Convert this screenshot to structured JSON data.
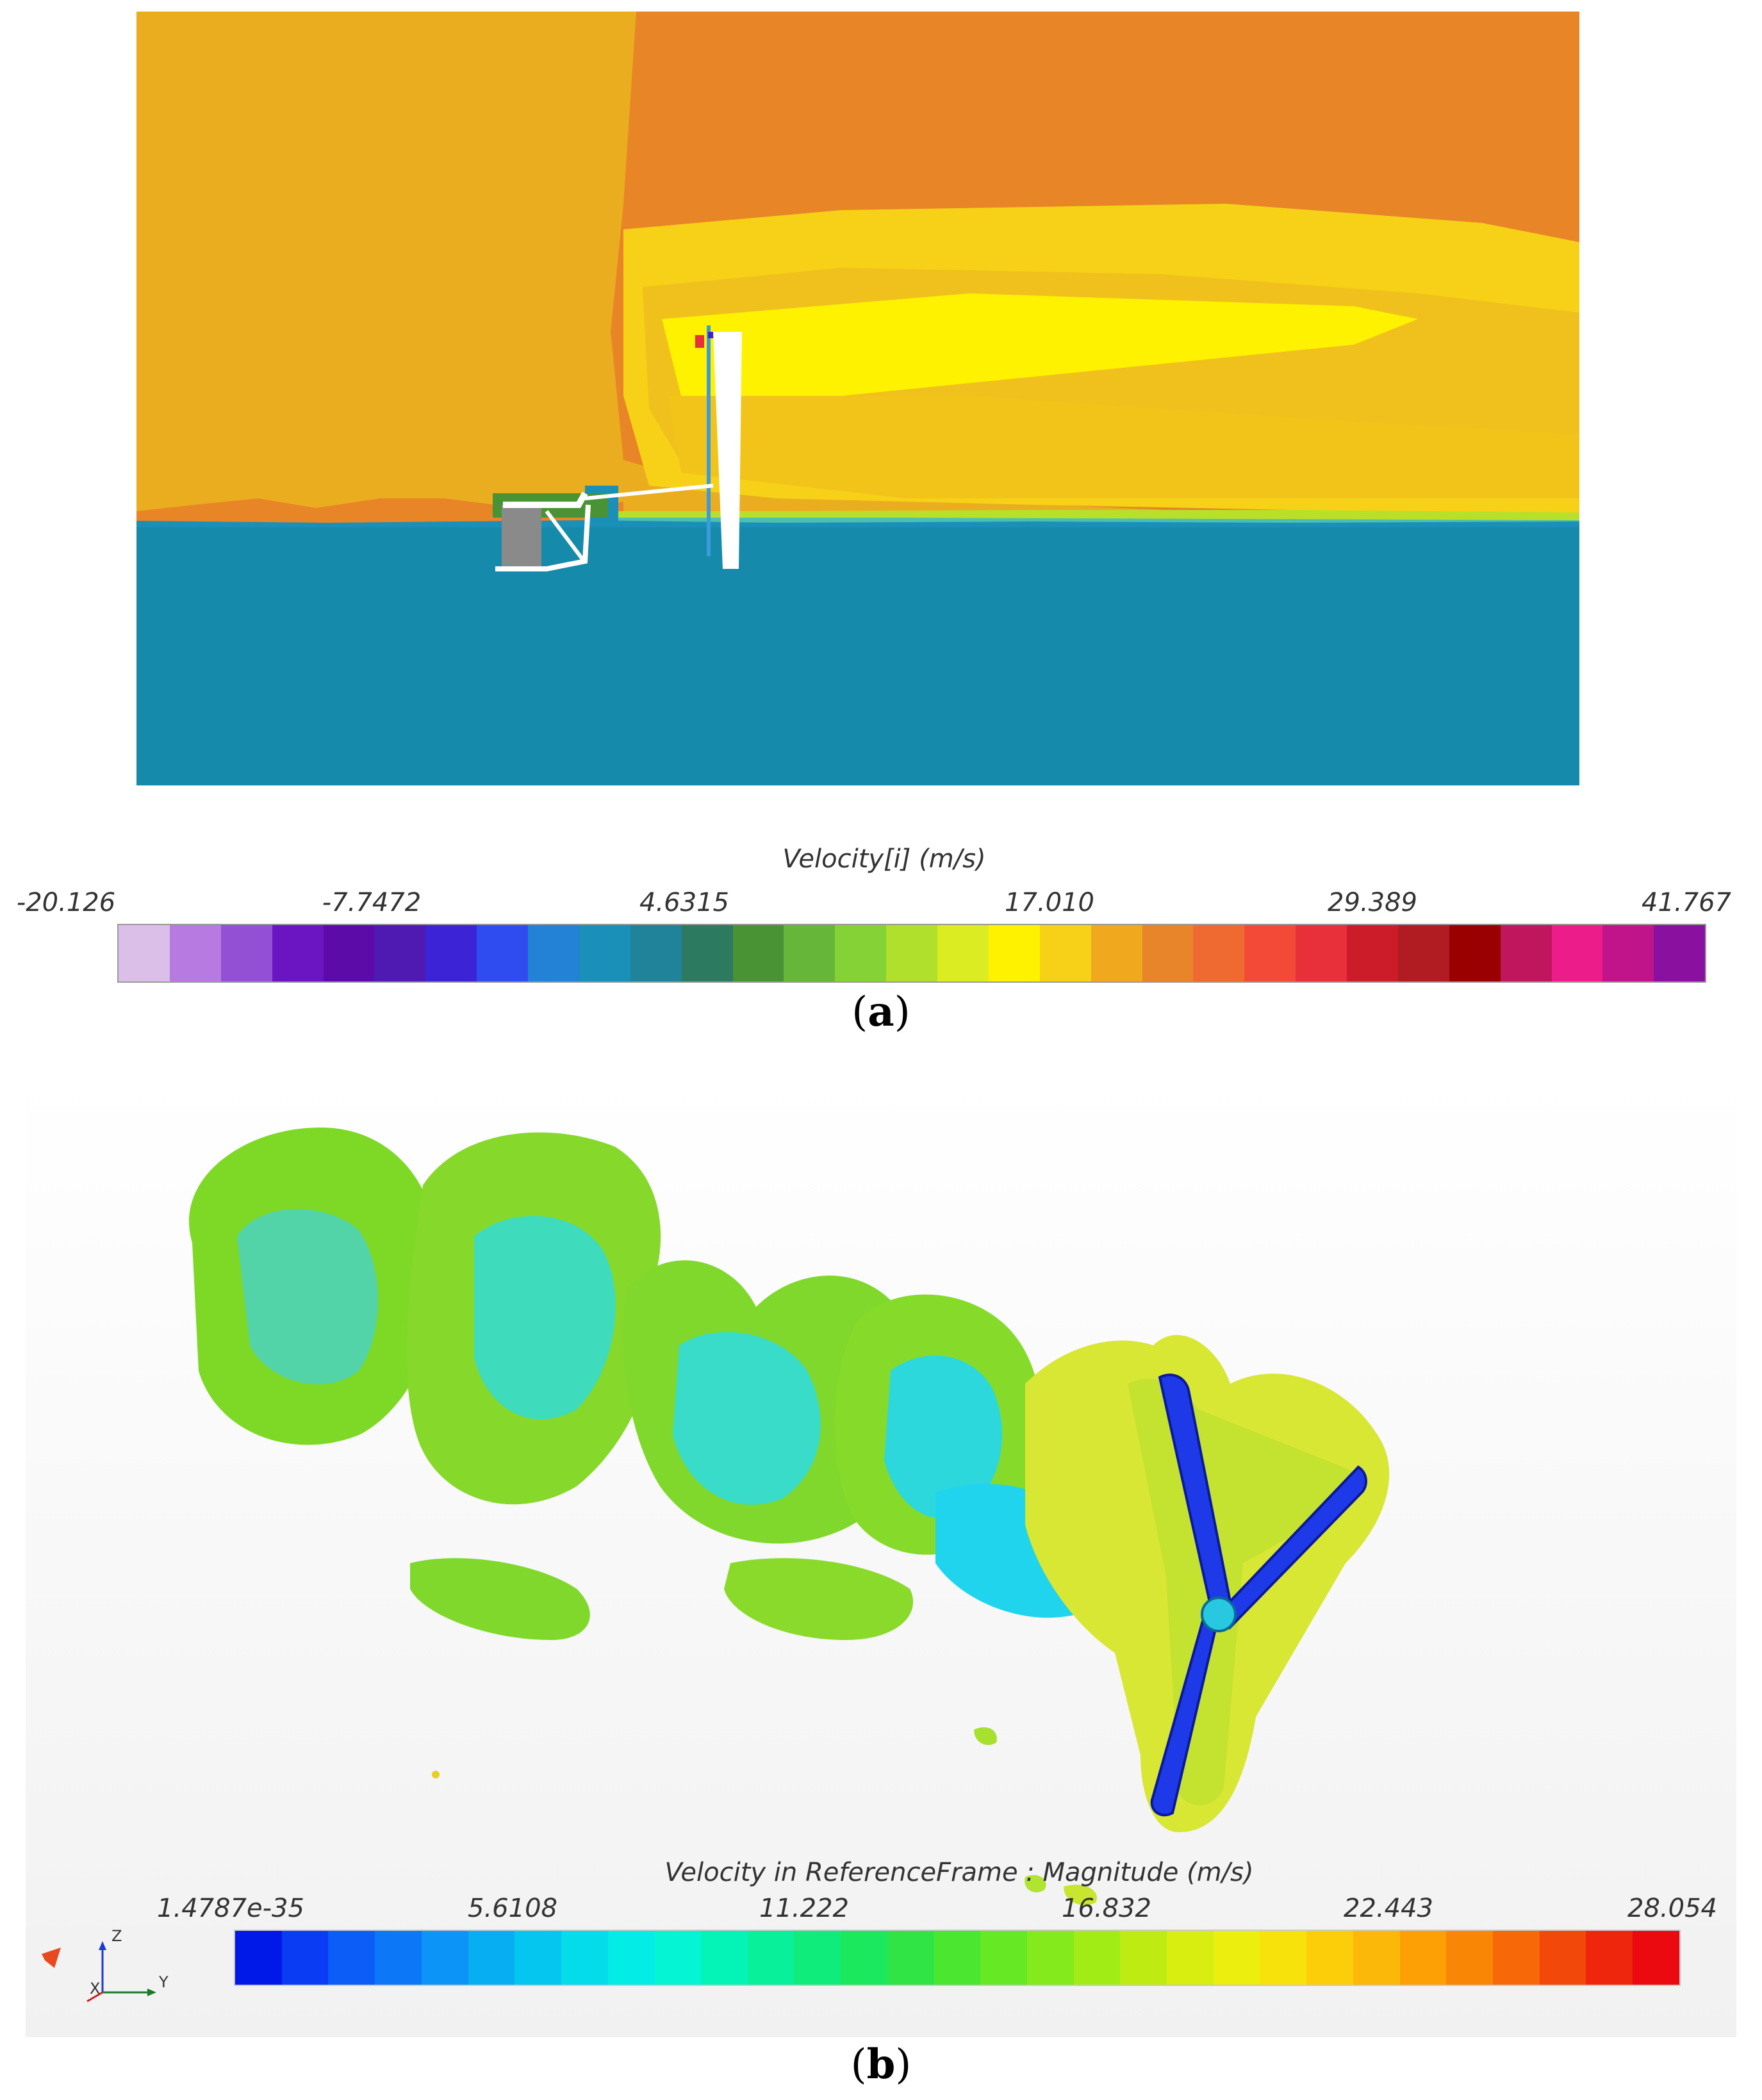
{
  "panel_a": {
    "caption_open": "(",
    "caption_letter": "a",
    "caption_close": ")",
    "legend_title": "Velocity[i] (m/s)",
    "ticks": [
      "-20.126",
      "-7.7472",
      "4.6315",
      "17.010",
      "29.389",
      "41.767"
    ],
    "colors": [
      "#dcbfe8",
      "#b77ae0",
      "#9350d4",
      "#6b14c2",
      "#5c0ba8",
      "#4e1ab2",
      "#3c24d6",
      "#2f4cf0",
      "#2381d6",
      "#1a90b8",
      "#218399",
      "#2c7a60",
      "#4a9334",
      "#66b63a",
      "#85d236",
      "#b0df2c",
      "#dbec22",
      "#fff200",
      "#f7d118",
      "#f0a81e",
      "#e8852a",
      "#ef6a30",
      "#f24a36",
      "#e8303a",
      "#cc1c2a",
      "#b01c22",
      "#9a0000",
      "#c0165e",
      "#ec1d8a",
      "#c0148a",
      "#8a10a0"
    ]
  },
  "panel_b": {
    "caption_open": "(",
    "caption_letter": "b",
    "caption_close": ")",
    "legend_title": "Velocity in ReferenceFrame            : Magnitude (m/s)",
    "ticks": [
      "1.4787e-35",
      "5.6108",
      "11.222",
      "16.832",
      "22.443",
      "28.054"
    ],
    "axis_labels": {
      "z": "Z",
      "x": "X",
      "y": "Y"
    },
    "colors": [
      "#0018e8",
      "#0a3cf4",
      "#0c5cf8",
      "#0c78f8",
      "#0c94f6",
      "#08aef2",
      "#04c6ee",
      "#04dcea",
      "#04ece6",
      "#04f4d4",
      "#04f4b8",
      "#08f09a",
      "#10ec7c",
      "#1ce85e",
      "#30e446",
      "#4ae630",
      "#66e824",
      "#84ea1c",
      "#a2ec16",
      "#beec12",
      "#d8ee10",
      "#ecee0e",
      "#f8e20c",
      "#fcce0a",
      "#fcb808",
      "#fca006",
      "#fa8606",
      "#f66808",
      "#f2480a",
      "#ee260c",
      "#ea0a10"
    ]
  }
}
